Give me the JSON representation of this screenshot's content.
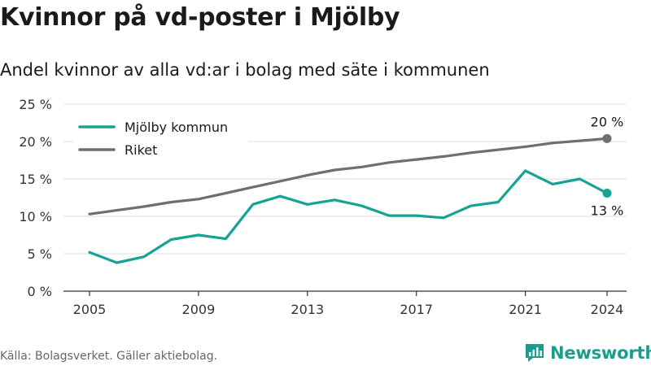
{
  "title": "Kvinnor på vd-poster i Mjölby",
  "subtitle": "Andel kvinnor av alla vd:ar i bolag med säte i kommunen",
  "footer": {
    "source": "Källa: Bolagsverket. Gäller aktiebolag.",
    "brand": "Newsworthy"
  },
  "colors": {
    "mjolby": "#16a394",
    "riket": "#6e6e73",
    "grid": "#dcdcdc",
    "axis": "#333333"
  },
  "chart_data": {
    "type": "line",
    "x": [
      2005,
      2006,
      2007,
      2008,
      2009,
      2010,
      2011,
      2012,
      2013,
      2014,
      2015,
      2016,
      2017,
      2018,
      2019,
      2020,
      2021,
      2022,
      2023,
      2024
    ],
    "series": [
      {
        "name": "Mjölby kommun",
        "color": "#16a394",
        "values": [
          5.2,
          3.8,
          4.6,
          6.9,
          7.5,
          7.0,
          11.6,
          12.7,
          11.6,
          12.2,
          11.4,
          10.1,
          10.1,
          9.8,
          11.4,
          11.9,
          16.1,
          14.3,
          15.0,
          13.1
        ],
        "end_label": "13 %"
      },
      {
        "name": "Riket",
        "color": "#6e6e73",
        "values": [
          10.3,
          10.8,
          11.3,
          11.9,
          12.3,
          13.1,
          13.9,
          14.7,
          15.5,
          16.2,
          16.6,
          17.2,
          17.6,
          18.0,
          18.5,
          18.9,
          19.3,
          19.8,
          20.1,
          20.4
        ],
        "end_label": "20 %"
      }
    ],
    "x_ticks": [
      2005,
      2009,
      2013,
      2017,
      2021,
      2024
    ],
    "y_ticks": [
      0,
      5,
      10,
      15,
      20,
      25
    ],
    "y_tick_labels": [
      "0 %",
      "5 %",
      "10 %",
      "15 %",
      "20 %",
      "25 %"
    ],
    "ylim": [
      0,
      25
    ],
    "xlim": [
      2005,
      2024
    ],
    "grid": true,
    "legend_position": "top-left",
    "title": "Kvinnor på vd-poster i Mjölby",
    "xlabel": "",
    "ylabel": ""
  }
}
